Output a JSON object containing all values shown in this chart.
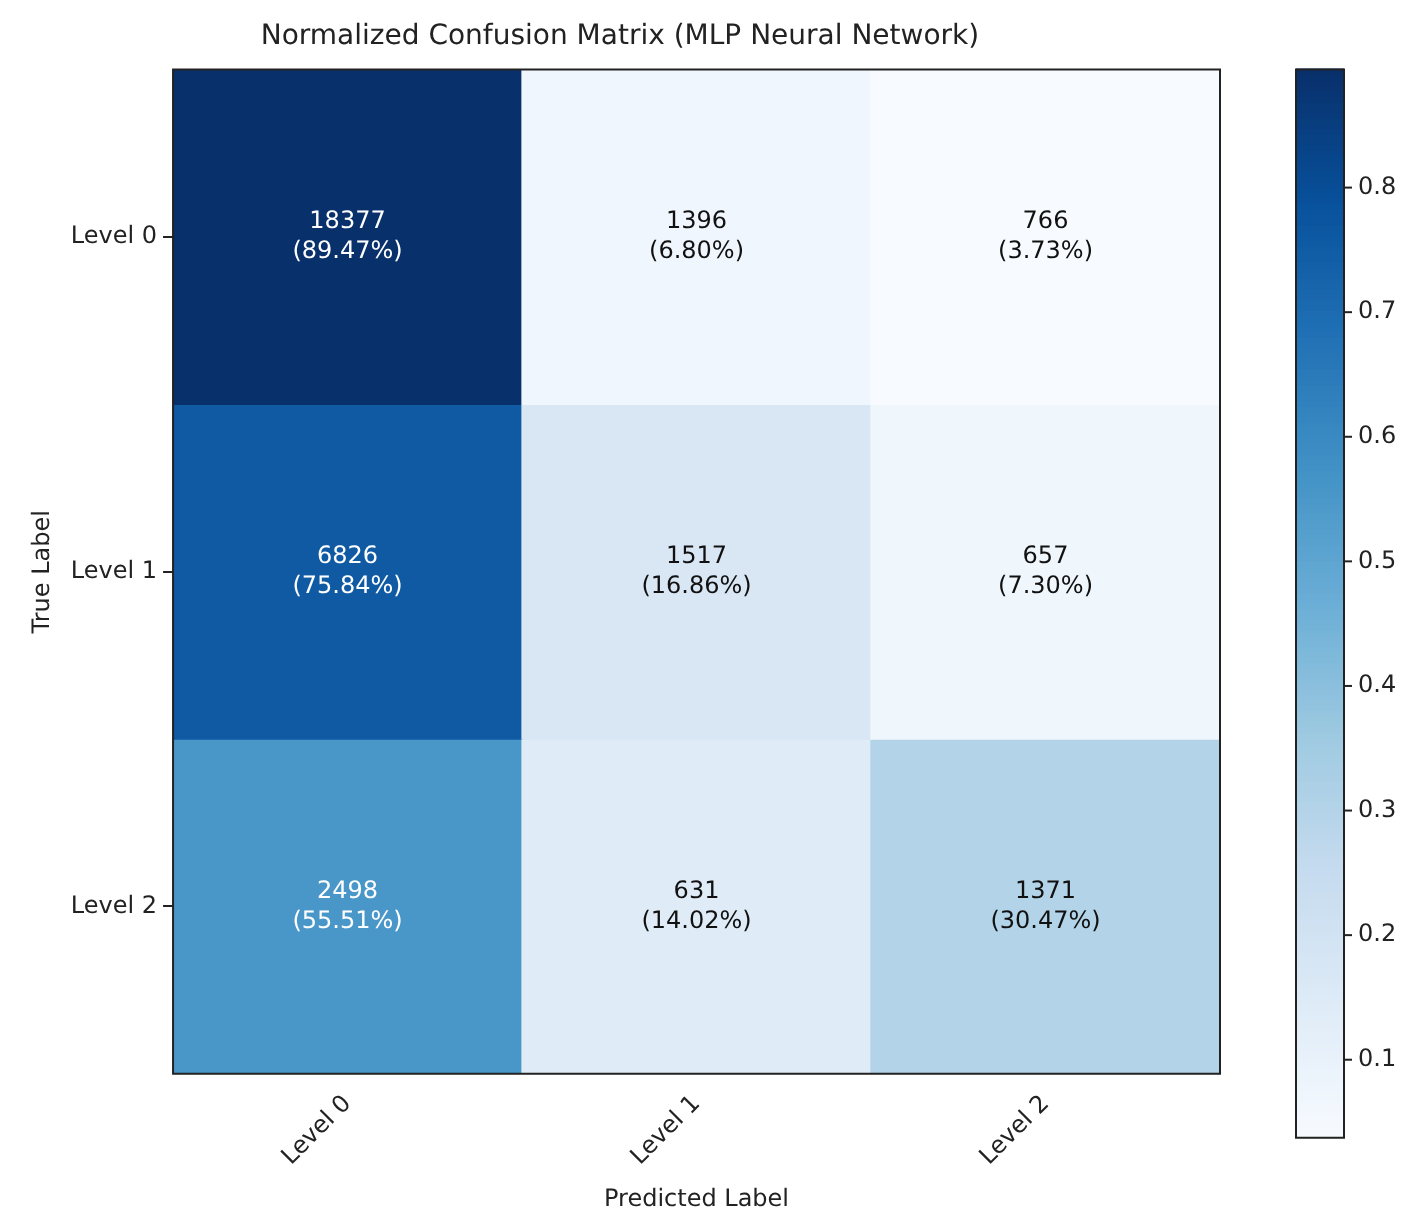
{
  "chart_data": {
    "type": "heatmap",
    "title": "Normalized Confusion Matrix (MLP Neural Network)",
    "xlabel": "Predicted Label",
    "ylabel": "True Label",
    "categories": [
      "Level 0",
      "Level 1",
      "Level 2"
    ],
    "y_categories": [
      "Level 0",
      "Level 1",
      "Level 2"
    ],
    "cells": [
      [
        0.8947,
        0.068,
        0.0373
      ],
      [
        0.7584,
        0.1686,
        0.073
      ],
      [
        0.5551,
        0.1402,
        0.3047
      ]
    ],
    "cell_labels": [
      [
        "18377\n(89.47%)",
        "1396\n(6.80%)",
        "766\n(3.73%)"
      ],
      [
        "6826\n(75.84%)",
        "1517\n(16.86%)",
        "657\n(7.30%)"
      ],
      [
        "2498\n(55.51%)",
        "631\n(14.02%)",
        "1371\n(30.47%)"
      ]
    ],
    "clim": [
      0.0373,
      0.8947
    ],
    "cticks": [
      0.1,
      0.2,
      0.3,
      0.4,
      0.5,
      0.6,
      0.7,
      0.8
    ],
    "grid": false
  }
}
